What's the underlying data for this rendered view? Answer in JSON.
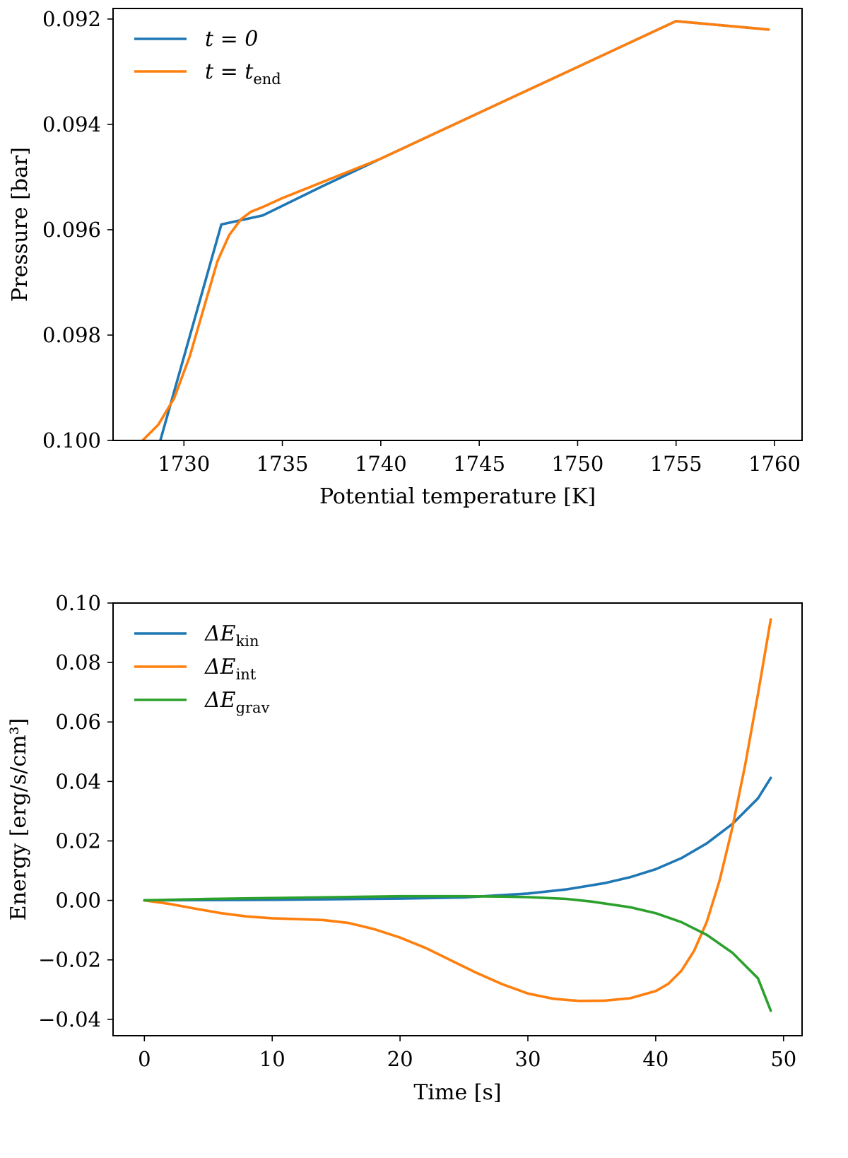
{
  "colors": {
    "blue": "#1f77b4",
    "orange": "#ff7f0e",
    "green": "#2ca02c",
    "axis": "#000000",
    "background": "#ffffff"
  },
  "chart_data": [
    {
      "type": "line",
      "title": "",
      "xlabel": "Potential temperature [K]",
      "ylabel": "Pressure [bar]",
      "xlim": [
        1726.4,
        1761.4
      ],
      "ylim": [
        0.1,
        0.0918
      ],
      "y_inverted": true,
      "grid": false,
      "legend": "top-left",
      "x_ticks": [
        1730,
        1735,
        1740,
        1745,
        1750,
        1755,
        1760
      ],
      "x_tick_labels": [
        "1730",
        "1735",
        "1740",
        "1745",
        "1750",
        "1755",
        "1760"
      ],
      "y_ticks": [
        0.092,
        0.094,
        0.096,
        0.098,
        0.1
      ],
      "y_tick_labels": [
        "0.092",
        "0.094",
        "0.096",
        "0.098",
        "0.100"
      ],
      "series": [
        {
          "name": "t = 0",
          "legend_main": "t = 0",
          "legend_sub": "",
          "color": "#1f77b4",
          "x": [
            1728.8,
            1731.9,
            1734.0,
            1737.0,
            1740.0,
            1745.0,
            1750.0,
            1755.0,
            1759.7
          ],
          "y": [
            0.1,
            0.0959,
            0.09573,
            0.09518,
            0.09465,
            0.09378,
            0.09291,
            0.09204,
            0.0922
          ]
        },
        {
          "name": "t = t_end",
          "legend_main": "t = t",
          "legend_sub": "end",
          "color": "#ff7f0e",
          "x": [
            1727.9,
            1728.7,
            1729.5,
            1730.3,
            1731.0,
            1731.7,
            1732.3,
            1732.9,
            1733.4,
            1734.0,
            1735.0,
            1737.0,
            1740.0,
            1745.0,
            1750.0,
            1755.0,
            1759.7
          ],
          "y": [
            0.1,
            0.0997,
            0.0992,
            0.0984,
            0.0975,
            0.0966,
            0.0961,
            0.0958,
            0.09566,
            0.09557,
            0.0954,
            0.0951,
            0.09465,
            0.09378,
            0.09291,
            0.09204,
            0.0922
          ]
        }
      ]
    },
    {
      "type": "line",
      "title": "",
      "xlabel": "Time [s]",
      "ylabel": "Energy [erg/s/cm³]",
      "xlim": [
        -2.45,
        51.45
      ],
      "ylim": [
        -0.0455,
        0.1
      ],
      "grid": false,
      "legend": "top-left",
      "x_ticks": [
        0,
        10,
        20,
        30,
        40,
        50
      ],
      "x_tick_labels": [
        "0",
        "10",
        "20",
        "30",
        "40",
        "50"
      ],
      "y_ticks": [
        -0.04,
        -0.02,
        0.0,
        0.02,
        0.04,
        0.06,
        0.08,
        0.1
      ],
      "y_tick_labels": [
        "−0.04",
        "−0.02",
        "0.00",
        "0.02",
        "0.04",
        "0.06",
        "0.08",
        "0.10"
      ],
      "series": [
        {
          "name": "ΔE_kin",
          "legend_main": "ΔE",
          "legend_sub": "kin",
          "color": "#1f77b4",
          "x": [
            0,
            5,
            10,
            15,
            20,
            25,
            30,
            33,
            36,
            38,
            40,
            42,
            44,
            46,
            48,
            49
          ],
          "y": [
            0,
            0.0001,
            0.0002,
            0.0004,
            0.0006,
            0.001,
            0.0023,
            0.0037,
            0.0058,
            0.0078,
            0.0105,
            0.0142,
            0.0192,
            0.0257,
            0.0343,
            0.0412
          ]
        },
        {
          "name": "ΔE_int",
          "legend_main": "ΔE",
          "legend_sub": "int",
          "color": "#ff7f0e",
          "x": [
            0,
            2,
            4,
            6,
            8,
            10,
            12,
            14,
            16,
            18,
            20,
            22,
            24,
            26,
            28,
            30,
            32,
            34,
            36,
            38,
            40,
            41,
            42,
            43,
            44,
            45,
            46,
            47,
            48,
            49
          ],
          "y": [
            0,
            -0.0012,
            -0.0028,
            -0.0043,
            -0.0054,
            -0.006,
            -0.0063,
            -0.0066,
            -0.0076,
            -0.0097,
            -0.0125,
            -0.016,
            -0.0202,
            -0.0244,
            -0.0282,
            -0.0313,
            -0.0331,
            -0.0338,
            -0.0337,
            -0.0329,
            -0.0305,
            -0.028,
            -0.0237,
            -0.017,
            -0.0072,
            0.0067,
            0.0245,
            0.0456,
            0.0694,
            0.0945
          ]
        },
        {
          "name": "ΔE_grav",
          "legend_main": "ΔE",
          "legend_sub": "grav",
          "color": "#2ca02c",
          "x": [
            0,
            5,
            10,
            15,
            20,
            25,
            28,
            30,
            33,
            35,
            38,
            40,
            42,
            44,
            46,
            48,
            49
          ],
          "y": [
            0,
            0.0005,
            0.0008,
            0.0011,
            0.0014,
            0.0014,
            0.0013,
            0.0011,
            0.0005,
            -0.0004,
            -0.0023,
            -0.0043,
            -0.0073,
            -0.0116,
            -0.0176,
            -0.0262,
            -0.0371
          ]
        }
      ]
    }
  ]
}
